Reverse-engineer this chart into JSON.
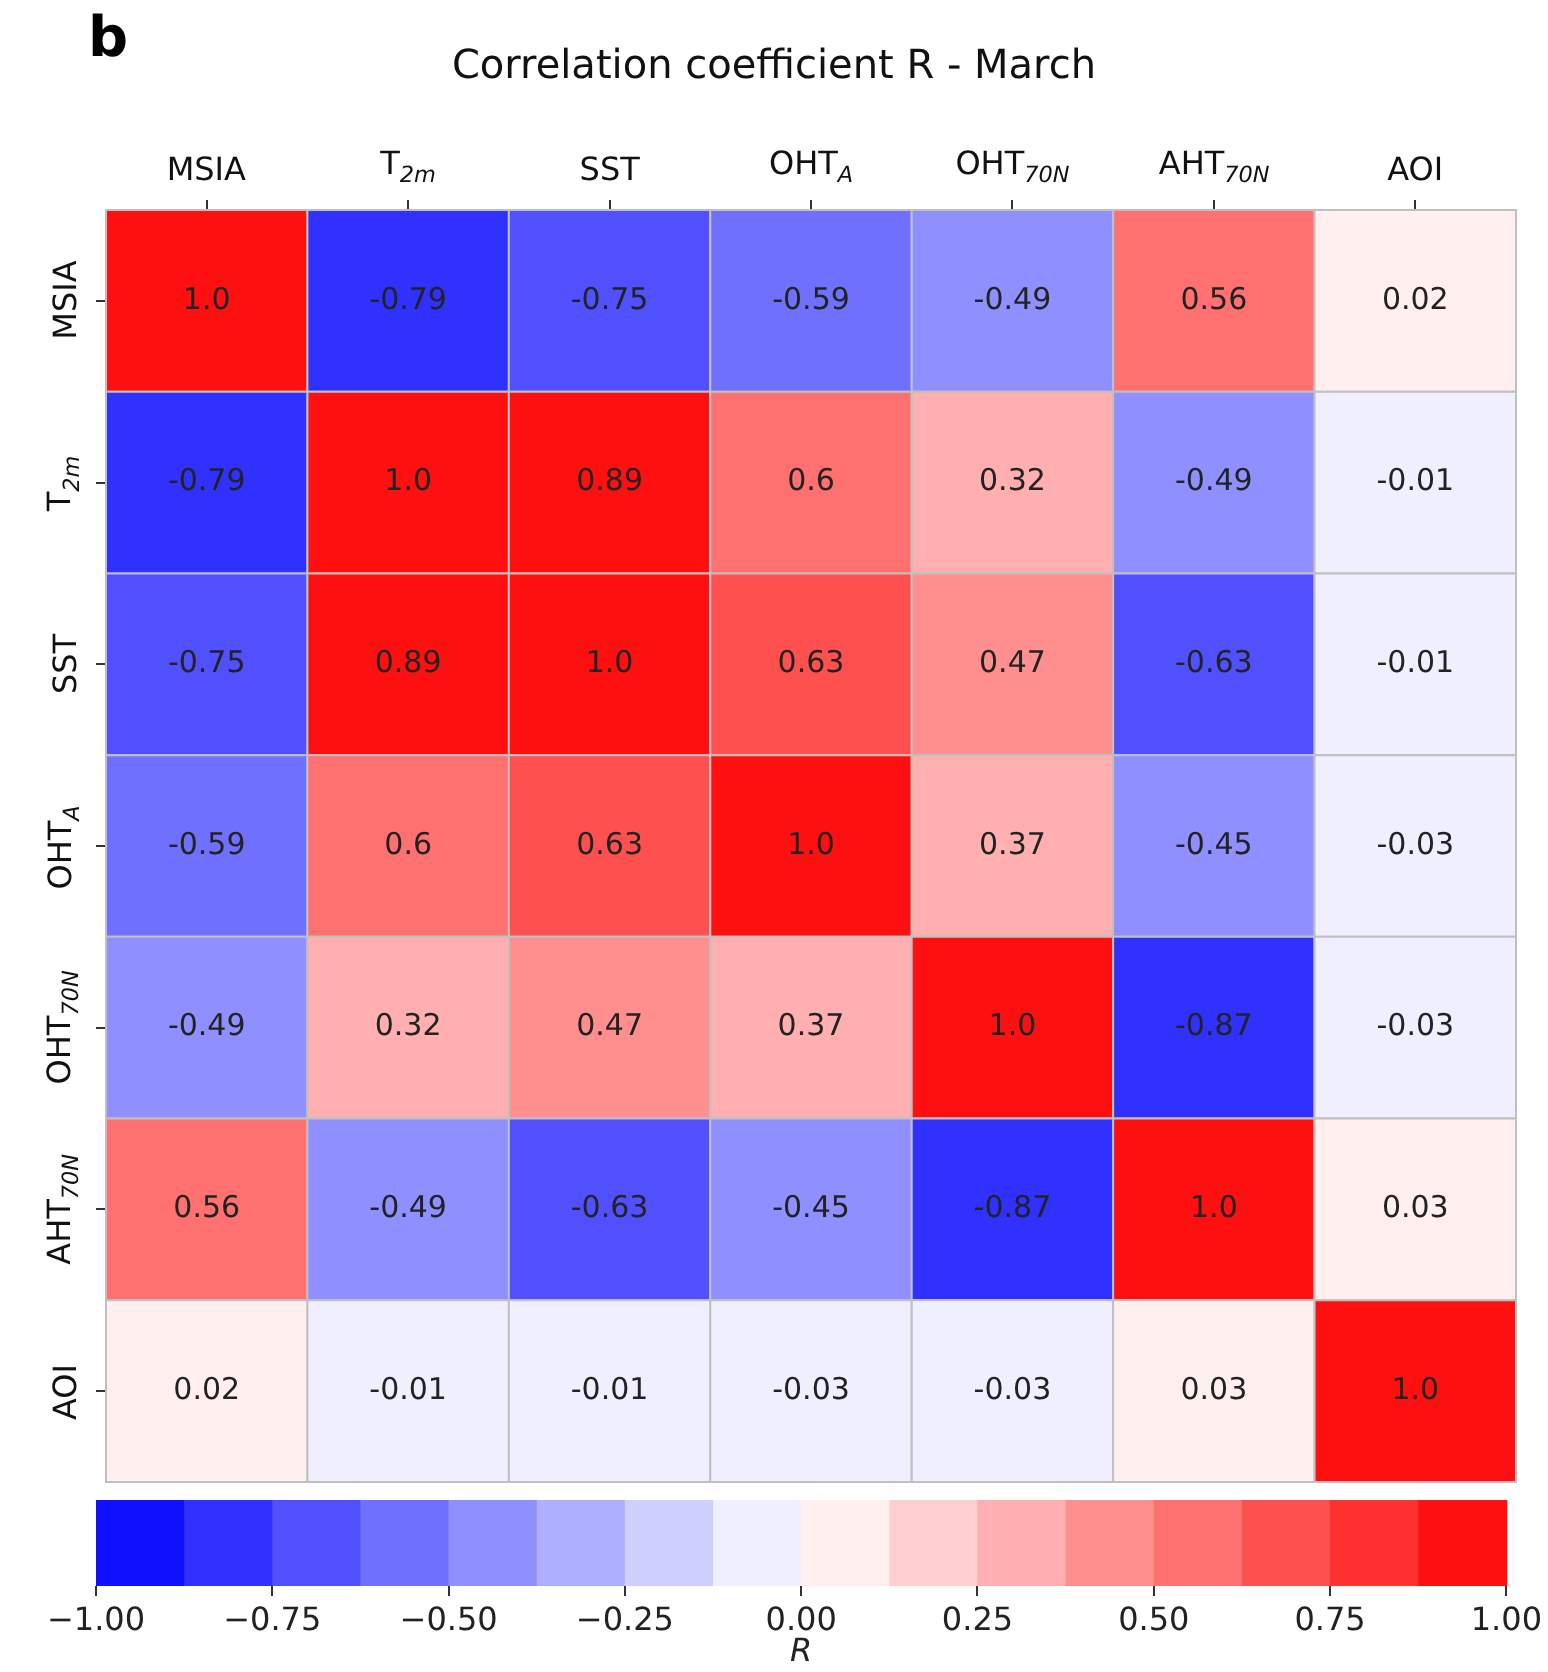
{
  "chart_data": {
    "type": "heatmap",
    "title": "Correlation coefficient R - March",
    "annotations": [
      "b"
    ],
    "categories": [
      "MSIA",
      "T$_{2m}$",
      "SST",
      "OHT$_{A}$",
      "OHT$_{70N}$",
      "AHT$_{70N}$",
      "AOI"
    ],
    "y_categories": [
      "MSIA",
      "T$_{2m}$",
      "SST",
      "OHT$_{A}$",
      "OHT$_{70N}$",
      "AHT$_{70N}$",
      "AOI"
    ],
    "cells": [
      [
        1.0,
        -0.79,
        -0.75,
        -0.59,
        -0.49,
        0.56,
        0.02
      ],
      [
        -0.79,
        1.0,
        0.89,
        0.6,
        0.32,
        -0.49,
        -0.01
      ],
      [
        -0.75,
        0.89,
        1.0,
        0.63,
        0.47,
        -0.63,
        -0.01
      ],
      [
        -0.59,
        0.6,
        0.63,
        1.0,
        0.37,
        -0.45,
        -0.03
      ],
      [
        -0.49,
        0.32,
        0.47,
        0.37,
        1.0,
        -0.87,
        -0.03
      ],
      [
        0.56,
        -0.49,
        -0.63,
        -0.45,
        -0.87,
        1.0,
        0.03
      ],
      [
        0.02,
        -0.01,
        -0.01,
        -0.03,
        -0.03,
        0.03,
        1.0
      ]
    ],
    "cell_labels": [
      [
        "1.0",
        "-0.79",
        "-0.75",
        "-0.59",
        "-0.49",
        "0.56",
        "0.02"
      ],
      [
        "-0.79",
        "1.0",
        "0.89",
        "0.6",
        "0.32",
        "-0.49",
        "-0.01"
      ],
      [
        "-0.75",
        "0.89",
        "1.0",
        "0.63",
        "0.47",
        "-0.63",
        "-0.01"
      ],
      [
        "-0.59",
        "0.6",
        "0.63",
        "1.0",
        "0.37",
        "-0.45",
        "-0.03"
      ],
      [
        "-0.49",
        "0.32",
        "0.47",
        "0.37",
        "1.0",
        "-0.87",
        "-0.03"
      ],
      [
        "0.56",
        "-0.49",
        "-0.63",
        "-0.45",
        "-0.87",
        "1.0",
        "0.03"
      ],
      [
        "0.02",
        "-0.01",
        "-0.01",
        "-0.03",
        "-0.03",
        "0.03",
        "1.0"
      ]
    ],
    "clim": [
      -1,
      1
    ],
    "cticks": [
      {
        "value": -1,
        "label": "−1.00"
      },
      {
        "value": -0.75,
        "label": "−0.75"
      },
      {
        "value": -0.5,
        "label": "−0.50"
      },
      {
        "value": -0.25,
        "label": "−0.25"
      },
      {
        "value": 0,
        "label": "0.00"
      },
      {
        "value": 0.25,
        "label": "0.25"
      },
      {
        "value": 0.5,
        "label": "0.50"
      },
      {
        "value": 0.75,
        "label": "0.75"
      },
      {
        "value": 1,
        "label": "1.00"
      }
    ],
    "clabel": "R"
  }
}
